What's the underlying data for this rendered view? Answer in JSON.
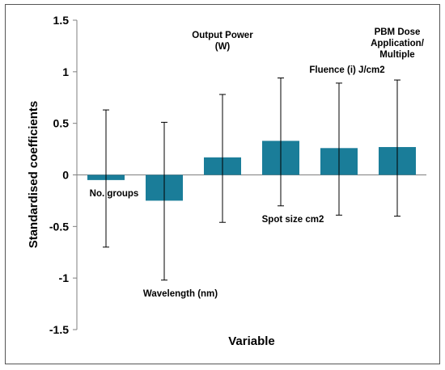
{
  "chart_data": {
    "type": "bar",
    "title": "",
    "xlabel": "Variable",
    "ylabel": "Standardised coefficients",
    "ylim": [
      -1.5,
      1.5
    ],
    "yticks": [
      "1.5",
      "1",
      "0.5",
      "0",
      "-0.5",
      "-1",
      "-1.5"
    ],
    "grid": false,
    "bar_color": "#1a7d99",
    "error_bar_color": "#000000",
    "categories": [
      "No. groups",
      "Wavelength (nm)",
      "Output Power (W)",
      "Spot size cm2",
      "Fluence (i)  J/cm2",
      "PBM Dose Application/ Multiple"
    ],
    "label_lines": [
      [
        "No. groups"
      ],
      [
        "Wavelength (nm)"
      ],
      [
        "Output Power",
        "(W)"
      ],
      [
        "Spot size cm2"
      ],
      [
        "Fluence (i)  J/cm2"
      ],
      [
        "PBM Dose",
        "Application/",
        "Multiple"
      ]
    ],
    "values": [
      -0.05,
      -0.25,
      0.17,
      0.33,
      0.26,
      0.27
    ],
    "error_low": [
      -0.7,
      -1.02,
      -0.46,
      -0.3,
      -0.39,
      -0.4
    ],
    "error_high": [
      0.63,
      0.51,
      0.78,
      0.94,
      0.89,
      0.92
    ]
  }
}
